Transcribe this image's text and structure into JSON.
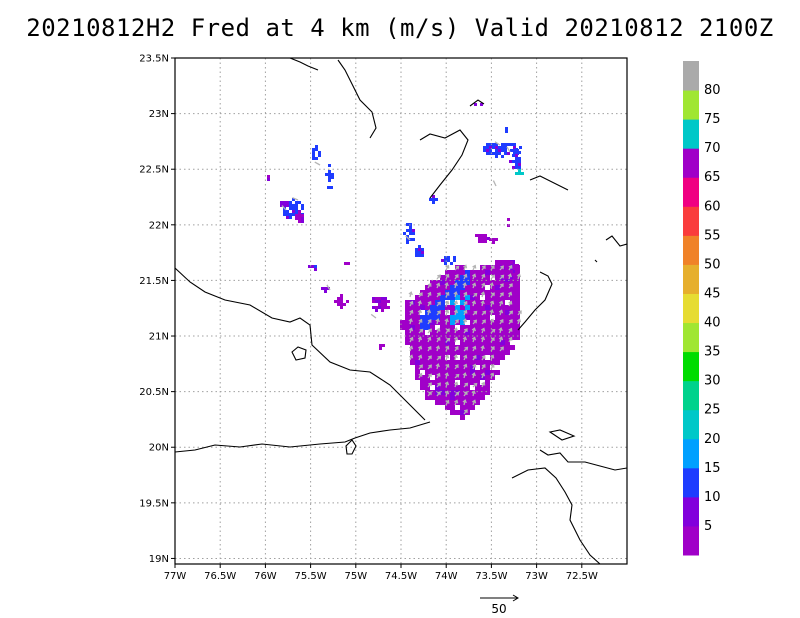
{
  "title": "20210812H2 Fred at 4 km (m/s) Valid 20210812 2100Z",
  "map": {
    "lon_range": [
      -77.0,
      -72.0
    ],
    "lat_range": [
      18.95,
      23.5
    ],
    "lon_ticks": [
      {
        "value": -77.0,
        "label": "77W"
      },
      {
        "value": -76.5,
        "label": "76.5W"
      },
      {
        "value": -76.0,
        "label": "76W"
      },
      {
        "value": -75.5,
        "label": "75.5W"
      },
      {
        "value": -75.0,
        "label": "75W"
      },
      {
        "value": -74.5,
        "label": "74.5W"
      },
      {
        "value": -74.0,
        "label": "74W"
      },
      {
        "value": -73.5,
        "label": "73.5W"
      },
      {
        "value": -73.0,
        "label": "73W"
      },
      {
        "value": -72.5,
        "label": "72.5W"
      }
    ],
    "lat_ticks": [
      {
        "value": 23.5,
        "label": "23.5N"
      },
      {
        "value": 23.0,
        "label": "23N"
      },
      {
        "value": 22.5,
        "label": "22.5N"
      },
      {
        "value": 22.0,
        "label": "22N"
      },
      {
        "value": 21.5,
        "label": "21.5N"
      },
      {
        "value": 21.0,
        "label": "21N"
      },
      {
        "value": 20.5,
        "label": "20.5N"
      },
      {
        "value": 20.0,
        "label": "20N"
      },
      {
        "value": 19.5,
        "label": "19.5N"
      },
      {
        "value": 19.0,
        "label": "19N"
      }
    ],
    "gridlines": "dotted",
    "reference_vector": {
      "label": "50"
    }
  },
  "colorbar": {
    "labels": [
      "5",
      "10",
      "15",
      "20",
      "25",
      "30",
      "35",
      "40",
      "45",
      "50",
      "55",
      "60",
      "65",
      "70",
      "75",
      "80"
    ],
    "colors": [
      "#a000c8",
      "#8200dc",
      "#1e3cff",
      "#00a0ff",
      "#00c8c8",
      "#00d28c",
      "#00dc00",
      "#a0e632",
      "#e6dc32",
      "#e6af2d",
      "#f08228",
      "#fa3c3c",
      "#f00082",
      "#a000c8",
      "#00c8c8",
      "#a0e632",
      "#aaaaaa"
    ]
  },
  "wind_colors": {
    "calm": "#a000c8",
    "light": "#8200dc",
    "moderate": "#1e3cff",
    "fresh": "#00a0ff",
    "teal": "#00c8c8",
    "arrow": "#b4b4b4"
  }
}
